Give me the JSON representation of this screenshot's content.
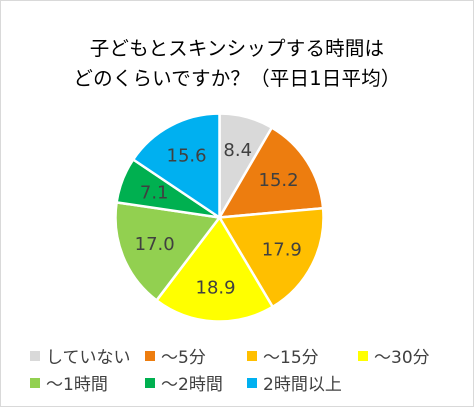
{
  "chart_data": {
    "type": "pie",
    "title_lines": [
      "子どもとスキンシップする時間は",
      "どのくらいですか？（平日1日平均）"
    ],
    "categories": [
      "していない",
      "～5分",
      "～15分",
      "～30分",
      "～1時間",
      "～2時間",
      "2時間以上"
    ],
    "values": [
      8.4,
      15.2,
      17.9,
      18.9,
      17.0,
      7.1,
      15.6
    ],
    "value_labels": [
      "8.4",
      "15.2",
      "17.9",
      "18.9",
      "17.0",
      "7.1",
      "15.6"
    ],
    "colors": [
      "#d9d9d9",
      "#ed7d0f",
      "#ffbf00",
      "#ffff00",
      "#92d050",
      "#00b050",
      "#00b0f0"
    ],
    "start_angle_deg": 0,
    "direction": "clockwise",
    "legend_position": "bottom"
  }
}
